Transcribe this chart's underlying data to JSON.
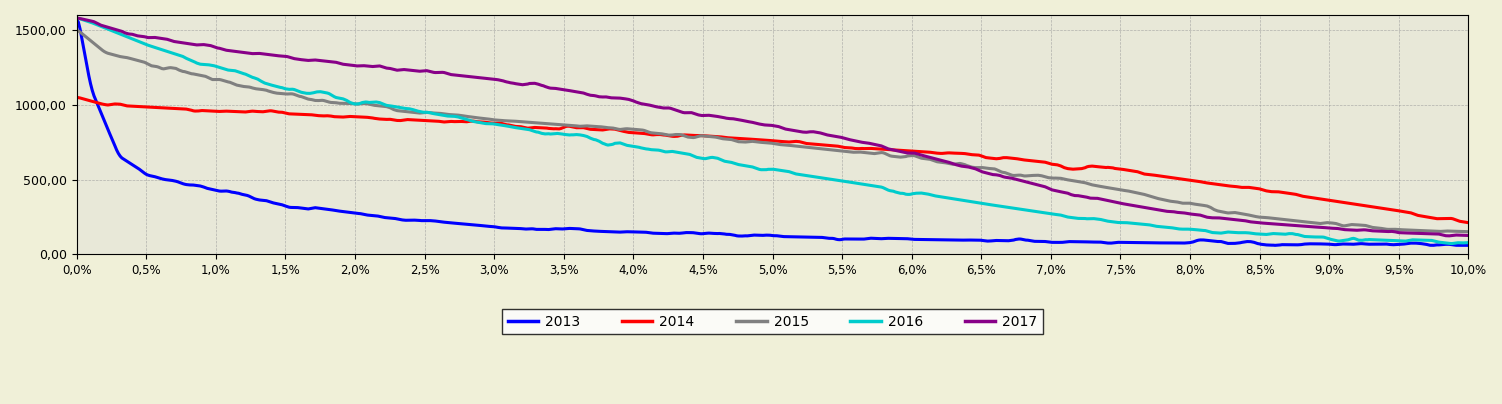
{
  "background_color": "#f0f0d8",
  "plot_bg_color": "#e8e8d8",
  "grid_color": "#999999",
  "ylim": [
    0,
    1600
  ],
  "xlim": [
    0,
    0.1
  ],
  "yticks": [
    0,
    500,
    1000,
    1500
  ],
  "ytick_labels": [
    "0,00",
    "500,00",
    "1000,00",
    "1500,00"
  ],
  "xticks": [
    0.0,
    0.005,
    0.01,
    0.015,
    0.02,
    0.025,
    0.03,
    0.035,
    0.04,
    0.045,
    0.05,
    0.055,
    0.06,
    0.065,
    0.07,
    0.075,
    0.08,
    0.085,
    0.09,
    0.095,
    0.1
  ],
  "xtick_labels": [
    "0,0%",
    "0,5%",
    "1,0%",
    "1,5%",
    "2,0%",
    "2,5%",
    "3,0%",
    "3,5%",
    "4,0%",
    "4,5%",
    "5,0%",
    "5,5%",
    "6,0%",
    "6,5%",
    "7,0%",
    "7,5%",
    "8,0%",
    "8,5%",
    "9,0%",
    "9,5%",
    "10,0%"
  ],
  "series": {
    "2013": {
      "color": "#0000ff",
      "linewidth": 2.2
    },
    "2014": {
      "color": "#ff0000",
      "linewidth": 2.2
    },
    "2015": {
      "color": "#808080",
      "linewidth": 2.2
    },
    "2016": {
      "color": "#00cccc",
      "linewidth": 2.2
    },
    "2017": {
      "color": "#880088",
      "linewidth": 2.2
    }
  },
  "legend_labels": [
    "2013",
    "2014",
    "2015",
    "2016",
    "2017"
  ],
  "legend_colors": [
    "#0000ff",
    "#ff0000",
    "#808080",
    "#00cccc",
    "#880088"
  ]
}
